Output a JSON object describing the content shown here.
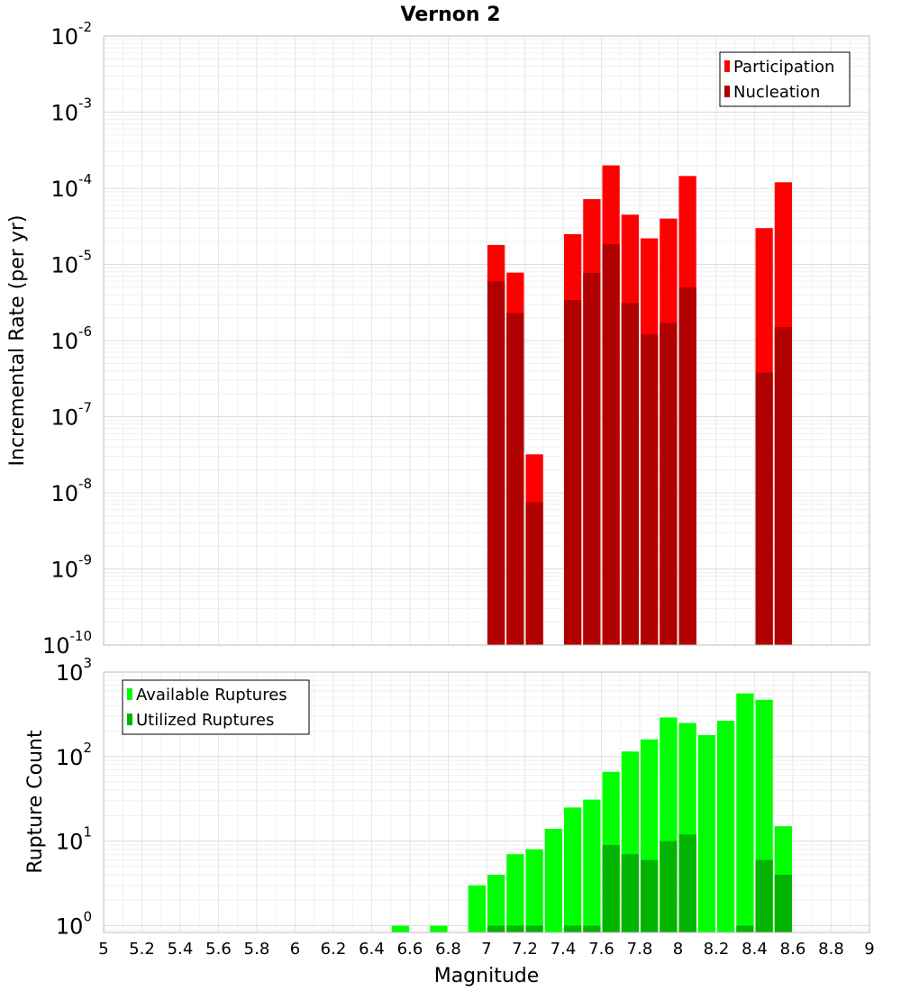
{
  "chart_data": {
    "title": "Vernon 2",
    "xlabel": "Magnitude",
    "xlim": [
      5,
      9
    ],
    "xticks": [
      "5",
      "5.2",
      "5.4",
      "5.6",
      "5.8",
      "6",
      "6.2",
      "6.4",
      "6.6",
      "6.8",
      "7",
      "7.2",
      "7.4",
      "7.6",
      "7.8",
      "8",
      "8.2",
      "8.4",
      "8.6",
      "8.8",
      "9"
    ],
    "bin_width": 0.1,
    "panels": [
      {
        "type": "bar",
        "ylabel": "Incremental Rate (per yr)",
        "yscale": "log",
        "ylim_exp": [
          -10,
          -2
        ],
        "ytick_exponents": [
          "-10",
          "-9",
          "-8",
          "-7",
          "-6",
          "-5",
          "-4",
          "-3",
          "-2"
        ],
        "ytick_base": "10",
        "legend": [
          {
            "label": "Participation",
            "color": "#ff0000"
          },
          {
            "label": "Nucleation",
            "color": "#b00000"
          }
        ],
        "series": [
          {
            "name": "Participation",
            "color": "#ff0000",
            "x": [
              7.05,
              7.15,
              7.25,
              7.45,
              7.55,
              7.65,
              7.75,
              7.85,
              7.95,
              8.05,
              8.45,
              8.55
            ],
            "values": [
              1.8e-05,
              7.8e-06,
              3.2e-08,
              2.5e-05,
              7.2e-05,
              0.0002,
              4.5e-05,
              2.2e-05,
              4e-05,
              0.000145,
              3e-05,
              0.00012
            ]
          },
          {
            "name": "Nucleation",
            "color": "#b00000",
            "x": [
              7.05,
              7.15,
              7.25,
              7.45,
              7.55,
              7.65,
              7.75,
              7.85,
              7.95,
              8.05,
              8.45,
              8.55
            ],
            "values": [
              6e-06,
              2.3e-06,
              7.5e-09,
              3.4e-06,
              7.7e-06,
              1.85e-05,
              3.1e-06,
              1.2e-06,
              1.7e-06,
              5e-06,
              3.8e-07,
              1.5e-06
            ]
          }
        ]
      },
      {
        "type": "bar",
        "ylabel": "Rupture Count",
        "yscale": "log",
        "ylim_exp": [
          -0.08,
          3
        ],
        "ytick_exponents": [
          "0",
          "1",
          "2",
          "3"
        ],
        "ytick_base": "10",
        "legend": [
          {
            "label": "Available Ruptures",
            "color": "#00ff00"
          },
          {
            "label": "Utilized Ruptures",
            "color": "#00b400"
          }
        ],
        "series": [
          {
            "name": "Available Ruptures",
            "color": "#00ff00",
            "x": [
              6.55,
              6.75,
              6.95,
              7.05,
              7.15,
              7.25,
              7.35,
              7.45,
              7.55,
              7.65,
              7.75,
              7.85,
              7.95,
              8.05,
              8.15,
              8.25,
              8.35,
              8.45,
              8.55
            ],
            "values": [
              1,
              1,
              3,
              4,
              7,
              8,
              14,
              25,
              31,
              66,
              115,
              160,
              290,
              250,
              180,
              265,
              560,
              470,
              15
            ]
          },
          {
            "name": "Utilized Ruptures",
            "color": "#00b400",
            "x": [
              7.05,
              7.15,
              7.25,
              7.45,
              7.55,
              7.65,
              7.75,
              7.85,
              7.95,
              8.05,
              8.35,
              8.45,
              8.55
            ],
            "values": [
              1,
              1,
              1,
              1,
              1,
              9,
              7,
              6,
              10,
              12,
              1,
              6,
              4
            ]
          }
        ]
      }
    ]
  }
}
